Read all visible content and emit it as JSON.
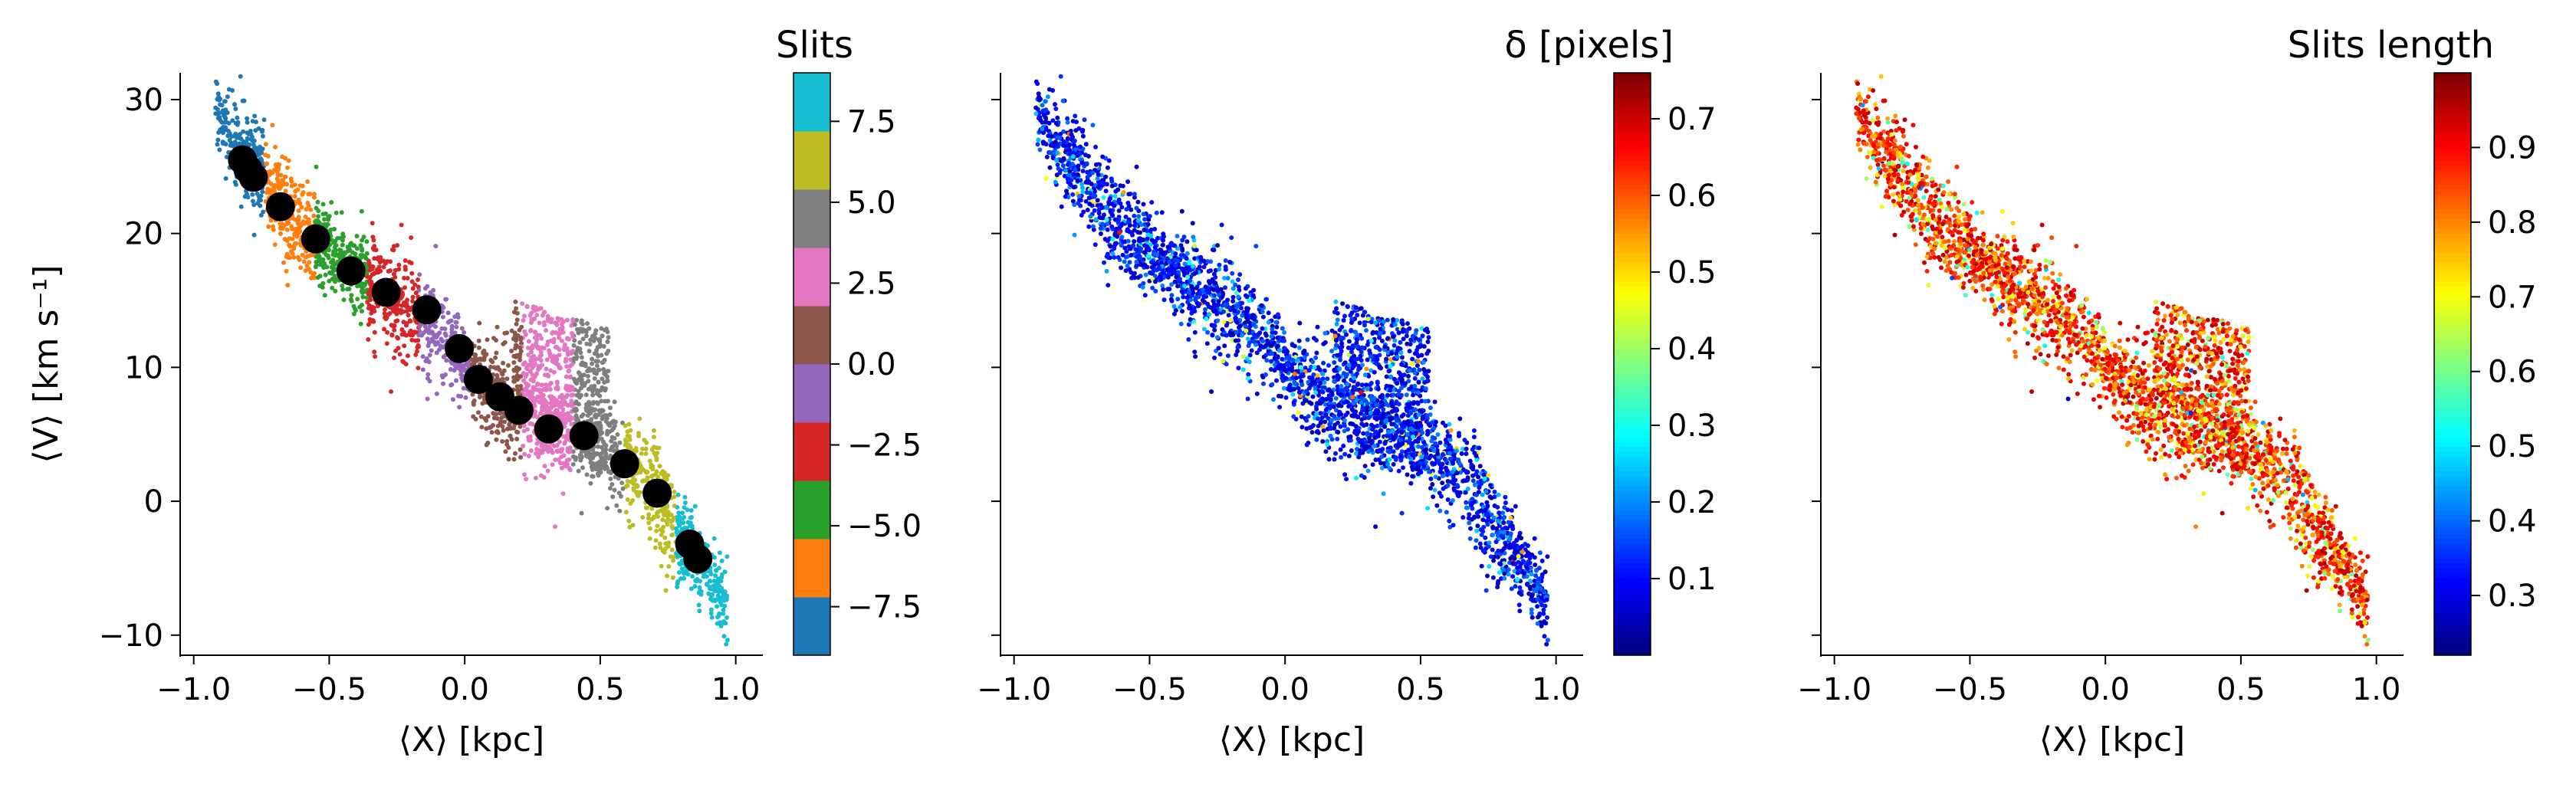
{
  "chart_data": [
    {
      "type": "scatter",
      "panel": "left",
      "xlabel": "⟨X⟩ [kpc]",
      "ylabel": "⟨V⟩ [km s⁻¹]",
      "xlim": [
        -1.05,
        1.1
      ],
      "ylim": [
        -11.5,
        32
      ],
      "xticks": [
        -1.0,
        -0.5,
        0.0,
        0.5,
        1.0
      ],
      "xtick_labels": [
        "−1.0",
        "−0.5",
        "0.0",
        "0.5",
        "1.0"
      ],
      "yticks": [
        -10,
        0,
        10,
        20,
        30
      ],
      "ytick_labels": [
        "−10",
        "0",
        "10",
        "20",
        "30"
      ],
      "colorbar": {
        "title": "Slits",
        "colormap": "tab10",
        "range": [
          -9,
          9
        ],
        "ticks": [
          -7.5,
          -5.0,
          -2.5,
          0.0,
          2.5,
          5.0,
          7.5
        ],
        "tick_labels": [
          "−7.5",
          "−5.0",
          "−2.5",
          "0.0",
          "2.5",
          "5.0",
          "7.5"
        ],
        "colors": [
          "#1f77b4",
          "#ff7f0e",
          "#2ca02c",
          "#d62728",
          "#9467bd",
          "#8c564b",
          "#e377c2",
          "#7f7f7f",
          "#bcbd22",
          "#17becf"
        ]
      },
      "points_description": "dense point cloud of pixel velocities colored by slit index",
      "slit_centroids": [
        {
          "x": -0.82,
          "y": 25.5
        },
        {
          "x": -0.8,
          "y": 24.8
        },
        {
          "x": -0.78,
          "y": 24.2
        },
        {
          "x": -0.68,
          "y": 22.0
        },
        {
          "x": -0.55,
          "y": 19.6
        },
        {
          "x": -0.42,
          "y": 17.2
        },
        {
          "x": -0.29,
          "y": 15.6
        },
        {
          "x": -0.14,
          "y": 14.3
        },
        {
          "x": -0.02,
          "y": 11.4
        },
        {
          "x": 0.05,
          "y": 9.1
        },
        {
          "x": 0.13,
          "y": 7.8
        },
        {
          "x": 0.2,
          "y": 6.8
        },
        {
          "x": 0.31,
          "y": 5.4
        },
        {
          "x": 0.44,
          "y": 4.9
        },
        {
          "x": 0.59,
          "y": 2.8
        },
        {
          "x": 0.71,
          "y": 0.6
        },
        {
          "x": 0.83,
          "y": -3.2
        },
        {
          "x": 0.86,
          "y": -4.3
        }
      ],
      "marker_color": "#000000"
    },
    {
      "type": "scatter",
      "panel": "middle",
      "xlabel": "⟨X⟩ [kpc]",
      "xlim": [
        -1.05,
        1.1
      ],
      "ylim": [
        -11.5,
        32
      ],
      "xticks": [
        -1.0,
        -0.5,
        0.0,
        0.5,
        1.0
      ],
      "xtick_labels": [
        "−1.0",
        "−0.5",
        "0.0",
        "0.5",
        "1.0"
      ],
      "colorbar": {
        "title": "δ [pixels]",
        "colormap": "jet",
        "range": [
          0.0,
          0.76
        ],
        "ticks": [
          0.1,
          0.2,
          0.3,
          0.4,
          0.5,
          0.6,
          0.7
        ],
        "tick_labels": [
          "0.1",
          "0.2",
          "0.3",
          "0.4",
          "0.5",
          "0.6",
          "0.7"
        ]
      },
      "points_description": "same point cloud colored by positional offset delta, mostly low (blue) values"
    },
    {
      "type": "scatter",
      "panel": "right",
      "xlabel": "⟨X⟩ [kpc]",
      "xlim": [
        -1.05,
        1.1
      ],
      "ylim": [
        -11.5,
        32
      ],
      "xticks": [
        -1.0,
        -0.5,
        0.0,
        0.5,
        1.0
      ],
      "xtick_labels": [
        "−1.0",
        "−0.5",
        "0.0",
        "0.5",
        "1.0"
      ],
      "colorbar": {
        "title": "Slits length",
        "colormap": "jet",
        "range": [
          0.22,
          1.0
        ],
        "ticks": [
          0.3,
          0.4,
          0.5,
          0.6,
          0.7,
          0.8,
          0.9
        ],
        "tick_labels": [
          "0.3",
          "0.4",
          "0.5",
          "0.6",
          "0.7",
          "0.8",
          "0.9"
        ]
      },
      "points_description": "same point cloud colored by slit length, mostly high (red) values"
    }
  ]
}
